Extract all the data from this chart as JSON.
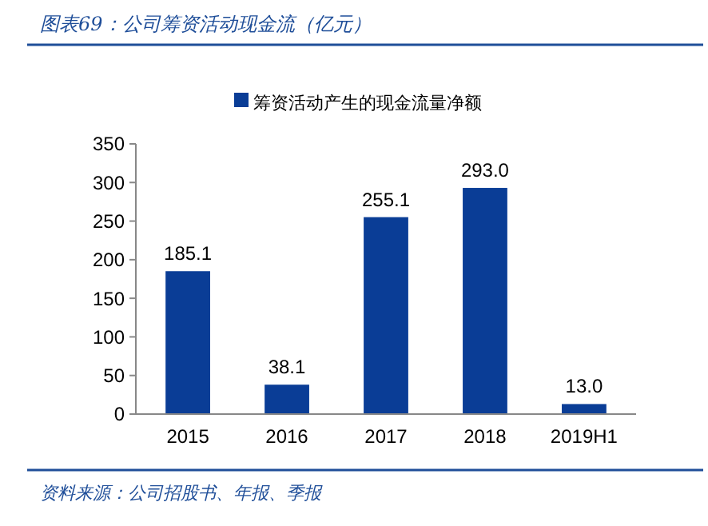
{
  "chart_data": {
    "type": "bar",
    "title": "图表69：公司筹资活动现金流（亿元）",
    "categories": [
      "2015",
      "2016",
      "2017",
      "2018",
      "2019H1"
    ],
    "series": [
      {
        "name": "筹资活动产生的现金流量净额",
        "color": "#0a3d96",
        "values": [
          185.1,
          38.1,
          255.1,
          293.0,
          13.0
        ]
      }
    ],
    "value_labels": [
      "185.1",
      "38.1",
      "255.1",
      "293.0",
      "13.0"
    ],
    "ylim": [
      0,
      350
    ],
    "yticks": [
      0,
      50,
      100,
      150,
      200,
      250,
      300,
      350
    ],
    "grid": false,
    "legend": "top",
    "annotations": [
      "资料来源：公司招股书、年报、季报"
    ]
  }
}
